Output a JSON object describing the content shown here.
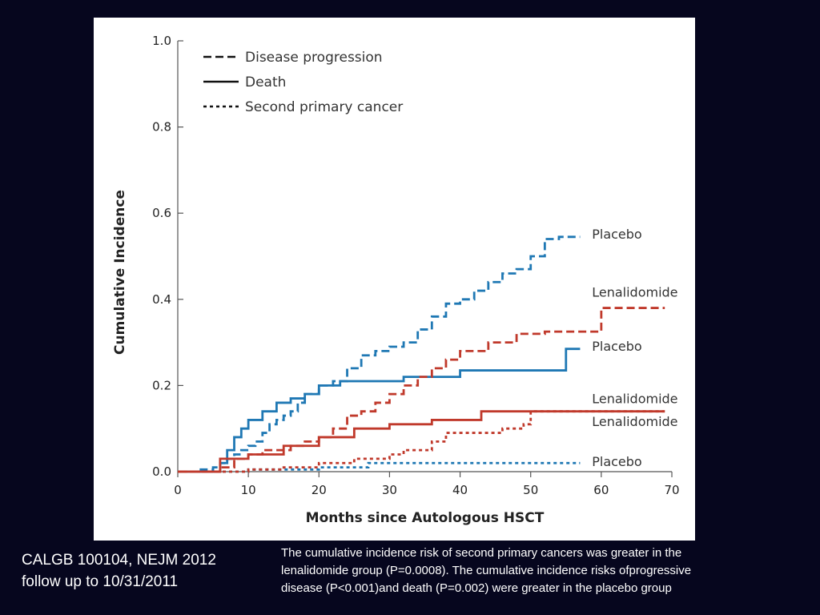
{
  "citation": {
    "line1": "CALGB 100104, NEJM 2012",
    "line2": "follow up to 10/31/2011"
  },
  "caption": {
    "line1": "The cumulative incidence risk of second primary cancers was greater in the",
    "line2": "lenalidomide group (P=0.0008).  The cumulative incidence risks ofprogressive",
    "line3": "disease (P<0.001)and death (P=0.002) were greater in the placebo group"
  },
  "chart_data": {
    "type": "line",
    "title": "",
    "xlabel": "Months since Autologous HSCT",
    "ylabel": "Cumulative Incidence",
    "xlim": [
      0,
      70
    ],
    "ylim": [
      0,
      1.0
    ],
    "x_ticks": [
      "0",
      "10",
      "20",
      "30",
      "40",
      "50",
      "60",
      "70"
    ],
    "y_ticks": [
      "0.0",
      "0.2",
      "0.4",
      "0.6",
      "0.8",
      "1.0"
    ],
    "grid": false,
    "legend_position": "top-left",
    "legend": [
      {
        "label": "Disease progression",
        "style": "dashed"
      },
      {
        "label": "Death",
        "style": "solid"
      },
      {
        "label": "Second primary cancer",
        "style": "dotted"
      }
    ],
    "colors": {
      "placebo": "#1f78b4",
      "lenalidomide": "#c0392b"
    },
    "series": [
      {
        "arm": "placebo",
        "label": "Placebo",
        "style": "dashed",
        "color": "#1f78b4",
        "x": [
          0,
          3,
          5,
          6,
          7,
          8,
          9,
          10,
          11,
          12,
          13,
          14,
          15,
          16,
          17,
          18,
          20,
          22,
          24,
          26,
          28,
          30,
          32,
          34,
          36,
          38,
          40,
          42,
          44,
          46,
          48,
          50,
          52,
          54,
          57
        ],
        "y": [
          0,
          0.005,
          0.01,
          0.02,
          0.03,
          0.04,
          0.05,
          0.06,
          0.07,
          0.09,
          0.11,
          0.12,
          0.13,
          0.14,
          0.16,
          0.18,
          0.2,
          0.21,
          0.24,
          0.27,
          0.28,
          0.29,
          0.3,
          0.33,
          0.36,
          0.39,
          0.4,
          0.42,
          0.44,
          0.46,
          0.47,
          0.5,
          0.54,
          0.545,
          0.545
        ]
      },
      {
        "arm": "placebo",
        "label": "Placebo",
        "style": "solid",
        "color": "#1f78b4",
        "x": [
          0,
          5,
          6,
          7,
          8,
          9,
          10,
          12,
          14,
          16,
          18,
          20,
          23,
          26,
          30,
          32,
          35,
          40,
          45,
          50,
          55,
          57
        ],
        "y": [
          0,
          0,
          0.02,
          0.05,
          0.08,
          0.1,
          0.12,
          0.14,
          0.16,
          0.17,
          0.18,
          0.2,
          0.21,
          0.21,
          0.21,
          0.22,
          0.22,
          0.235,
          0.235,
          0.235,
          0.285,
          0.285
        ]
      },
      {
        "arm": "placebo",
        "label": "Placebo",
        "style": "dotted",
        "color": "#1f78b4",
        "x": [
          0,
          5,
          10,
          15,
          20,
          25,
          27,
          30,
          40,
          50,
          57
        ],
        "y": [
          0,
          0,
          0.005,
          0.005,
          0.01,
          0.01,
          0.02,
          0.02,
          0.02,
          0.02,
          0.02
        ]
      },
      {
        "arm": "lenalidomide",
        "label": "Lenalidomide",
        "style": "dashed",
        "color": "#c0392b",
        "x": [
          0,
          5,
          6,
          8,
          10,
          12,
          14,
          16,
          18,
          20,
          22,
          24,
          26,
          28,
          30,
          32,
          34,
          36,
          38,
          40,
          44,
          48,
          52,
          56,
          60,
          65,
          69
        ],
        "y": [
          0,
          0,
          0.01,
          0.03,
          0.04,
          0.05,
          0.05,
          0.06,
          0.07,
          0.08,
          0.1,
          0.13,
          0.14,
          0.16,
          0.18,
          0.2,
          0.22,
          0.24,
          0.26,
          0.28,
          0.3,
          0.32,
          0.325,
          0.325,
          0.38,
          0.38,
          0.38
        ]
      },
      {
        "arm": "lenalidomide",
        "label": "Lenalidomide",
        "style": "solid",
        "color": "#c0392b",
        "x": [
          0,
          5,
          6,
          10,
          15,
          20,
          25,
          30,
          36,
          40,
          43,
          50,
          60,
          69
        ],
        "y": [
          0,
          0,
          0.03,
          0.04,
          0.06,
          0.08,
          0.1,
          0.11,
          0.12,
          0.12,
          0.14,
          0.14,
          0.14,
          0.14
        ]
      },
      {
        "arm": "lenalidomide",
        "label": "Lenalidomide",
        "style": "dotted",
        "color": "#c0392b",
        "x": [
          0,
          5,
          10,
          15,
          20,
          25,
          30,
          32,
          36,
          38,
          40,
          46,
          49,
          50,
          60,
          69
        ],
        "y": [
          0,
          0,
          0.005,
          0.01,
          0.02,
          0.03,
          0.04,
          0.05,
          0.07,
          0.09,
          0.09,
          0.1,
          0.11,
          0.14,
          0.14,
          0.14
        ]
      }
    ],
    "series_labels": [
      {
        "text": "Placebo",
        "x": 58,
        "y": 0.55
      },
      {
        "text": "Lenalidomide",
        "x": 58,
        "y": 0.415
      },
      {
        "text": "Placebo",
        "x": 58,
        "y": 0.29
      },
      {
        "text": "Lenalidomide",
        "x": 58,
        "y": 0.168
      },
      {
        "text": "Lenalidomide",
        "x": 58,
        "y": 0.115
      },
      {
        "text": "Placebo",
        "x": 58,
        "y": 0.022
      }
    ]
  }
}
